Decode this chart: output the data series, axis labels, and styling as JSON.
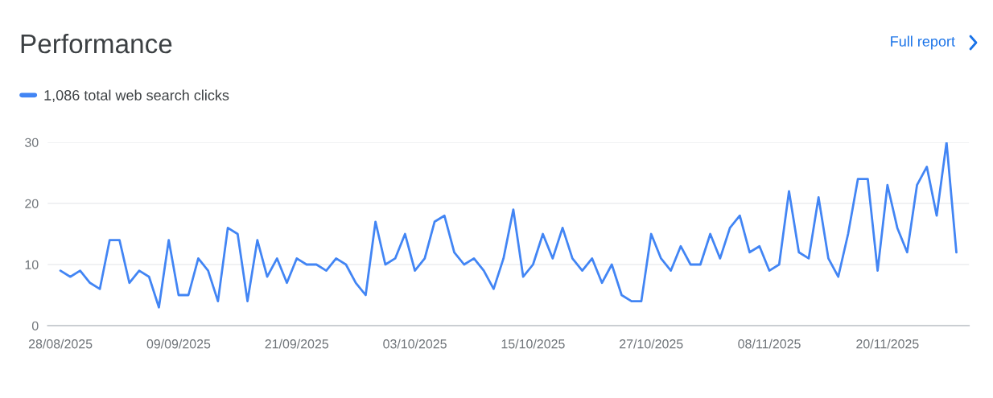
{
  "chart_data": {
    "type": "line",
    "title": "Performance",
    "annotations": [
      "Full report"
    ],
    "x": [
      "2025-08-28",
      "2025-08-29",
      "2025-08-30",
      "2025-08-31",
      "2025-09-01",
      "2025-09-02",
      "2025-09-03",
      "2025-09-04",
      "2025-09-05",
      "2025-09-06",
      "2025-09-07",
      "2025-09-08",
      "2025-09-09",
      "2025-09-10",
      "2025-09-11",
      "2025-09-12",
      "2025-09-13",
      "2025-09-14",
      "2025-09-15",
      "2025-09-16",
      "2025-09-17",
      "2025-09-18",
      "2025-09-19",
      "2025-09-20",
      "2025-09-21",
      "2025-09-22",
      "2025-09-23",
      "2025-09-24",
      "2025-09-25",
      "2025-09-26",
      "2025-09-27",
      "2025-09-28",
      "2025-09-29",
      "2025-09-30",
      "2025-10-01",
      "2025-10-02",
      "2025-10-03",
      "2025-10-04",
      "2025-10-05",
      "2025-10-06",
      "2025-10-07",
      "2025-10-08",
      "2025-10-09",
      "2025-10-10",
      "2025-10-11",
      "2025-10-12",
      "2025-10-13",
      "2025-10-14",
      "2025-10-15",
      "2025-10-16",
      "2025-10-17",
      "2025-10-18",
      "2025-10-19",
      "2025-10-20",
      "2025-10-21",
      "2025-10-22",
      "2025-10-23",
      "2025-10-24",
      "2025-10-25",
      "2025-10-26",
      "2025-10-27",
      "2025-10-28",
      "2025-10-29",
      "2025-10-30",
      "2025-10-31",
      "2025-11-01",
      "2025-11-02",
      "2025-11-03",
      "2025-11-04",
      "2025-11-05",
      "2025-11-06",
      "2025-11-07",
      "2025-11-08",
      "2025-11-09",
      "2025-11-10",
      "2025-11-11",
      "2025-11-12",
      "2025-11-13",
      "2025-11-14",
      "2025-11-15",
      "2025-11-16",
      "2025-11-17",
      "2025-11-18",
      "2025-11-19",
      "2025-11-20",
      "2025-11-21",
      "2025-11-22",
      "2025-11-23",
      "2025-11-24",
      "2025-11-25",
      "2025-11-26",
      "2025-11-27"
    ],
    "series": [
      {
        "name": "1,086 total web search clicks",
        "color": "#4285f4",
        "values": [
          9,
          8,
          9,
          7,
          6,
          14,
          14,
          7,
          9,
          8,
          3,
          14,
          5,
          5,
          11,
          9,
          4,
          16,
          15,
          4,
          14,
          8,
          11,
          7,
          11,
          10,
          10,
          9,
          11,
          10,
          7,
          5,
          17,
          10,
          11,
          15,
          9,
          11,
          17,
          18,
          12,
          10,
          11,
          9,
          6,
          11,
          19,
          8,
          10,
          15,
          11,
          16,
          11,
          9,
          11,
          7,
          10,
          5,
          4,
          4,
          15,
          11,
          9,
          13,
          10,
          10,
          15,
          11,
          16,
          18,
          12,
          13,
          9,
          10,
          22,
          12,
          11,
          21,
          11,
          8,
          15,
          24,
          24,
          9,
          23,
          16,
          12,
          23,
          26,
          18,
          30,
          12
        ]
      }
    ],
    "xlim": [
      "2025-08-26T17:00",
      "2025-11-28T07:00"
    ],
    "xticks": [
      {
        "value": "2025-08-28",
        "label": "28/08/2025"
      },
      {
        "value": "2025-09-09",
        "label": "09/09/2025"
      },
      {
        "value": "2025-09-21",
        "label": "21/09/2025"
      },
      {
        "value": "2025-10-03",
        "label": "03/10/2025"
      },
      {
        "value": "2025-10-15",
        "label": "15/10/2025"
      },
      {
        "value": "2025-10-27",
        "label": "27/10/2025"
      },
      {
        "value": "2025-11-08",
        "label": "08/11/2025"
      },
      {
        "value": "2025-11-20",
        "label": "20/11/2025"
      }
    ],
    "ylim": [
      0,
      30
    ],
    "yticks": [
      0,
      10,
      20,
      30
    ],
    "grid": "y",
    "legend": "top left"
  }
}
